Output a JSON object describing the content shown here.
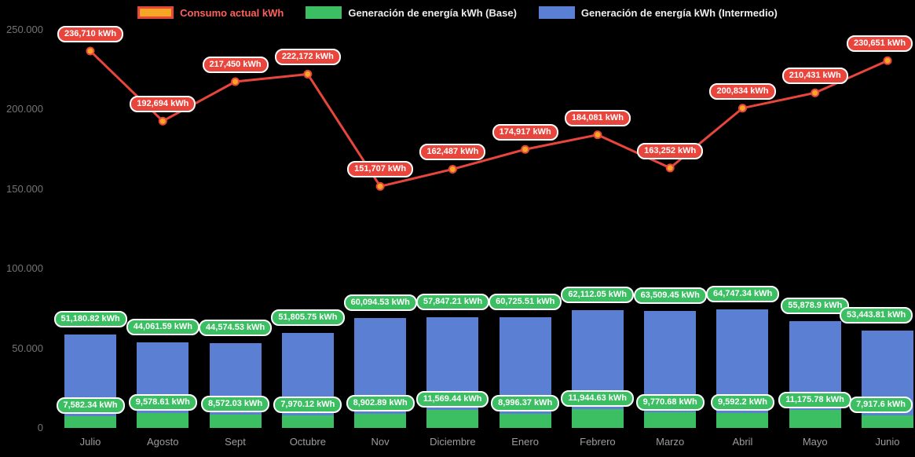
{
  "chart_data": {
    "type": "combo",
    "stacked_bars": true,
    "legend_position": "top",
    "background_color": "#000000",
    "grid": false,
    "ylim": [
      0,
      250000
    ],
    "yticks": [
      {
        "value": 250000,
        "label": "250.000"
      },
      {
        "value": 200000,
        "label": "200.000"
      },
      {
        "value": 150000,
        "label": "150.000"
      },
      {
        "value": 100000,
        "label": "100.000"
      },
      {
        "value": 50000,
        "label": "50.000"
      },
      {
        "value": 0,
        "label": "0"
      }
    ],
    "categories": [
      "Julio",
      "Agosto",
      "Sept",
      "Octubre",
      "Nov",
      "Diciembre",
      "Enero",
      "Febrero",
      "Marzo",
      "Abril",
      "Mayo",
      "Junio"
    ],
    "series": [
      {
        "name": "Consumo actual kWh",
        "type": "line",
        "color": "#e8463d",
        "point_color": "#f6a623",
        "swatch_fill": "#f6a623",
        "swatch_border": "#e8463d",
        "legend_text_color": "#ff6159",
        "label_pill_color": "#e8463d",
        "values": [
          236710,
          192694,
          217450,
          222172,
          151707,
          162487,
          174917,
          184081,
          163252,
          200834,
          210431,
          230651
        ],
        "labels": [
          "236,710 kWh",
          "192,694 kWh",
          "217,450 kWh",
          "222,172 kWh",
          "151,707 kWh",
          "162,487 kWh",
          "174,917 kWh",
          "184,081 kWh",
          "163,252 kWh",
          "200,834 kWh",
          "210,431 kWh",
          "230,651 kWh"
        ]
      },
      {
        "name": "Generación de energía kWh (Base)",
        "type": "bar",
        "color": "#3cbf63",
        "legend_text_color": "#ededed",
        "label_pill_color": "#3cbf63",
        "values": [
          7582.34,
          9578.61,
          8572.03,
          7970.12,
          8902.89,
          11569.44,
          8996.37,
          11944.63,
          9770.68,
          9592.2,
          11175.78,
          7917.6
        ],
        "labels": [
          "7,582.34 kWh",
          "9,578.61 kWh",
          "8,572.03 kWh",
          "7,970.12 kWh",
          "8,902.89 kWh",
          "11,569.44 kWh",
          "8,996.37 kWh",
          "11,944.63 kWh",
          "9,770.68 kWh",
          "9,592.2 kWh",
          "11,175.78 kWh",
          "7,917.6 kWh"
        ]
      },
      {
        "name": "Generación de energía kWh (Intermedio)",
        "type": "bar",
        "color": "#5b7fd2",
        "legend_text_color": "#ededed",
        "label_pill_color": "#3cbf63",
        "values": [
          51180.82,
          44061.59,
          44574.53,
          51805.75,
          60094.53,
          57847.21,
          60725.51,
          62112.05,
          63509.45,
          64747.34,
          55878.9,
          53443.81
        ],
        "labels": [
          "51,180.82 kWh",
          "44,061.59 kWh",
          "44,574.53 kWh",
          "51,805.75 kWh",
          "60,094.53 kWh",
          "57,847.21 kWh",
          "60,725.51 kWh",
          "62,112.05 kWh",
          "63,509.45 kWh",
          "64,747.34 kWh",
          "55,878.9 kWh",
          "53,443.81 kWh"
        ]
      }
    ]
  }
}
